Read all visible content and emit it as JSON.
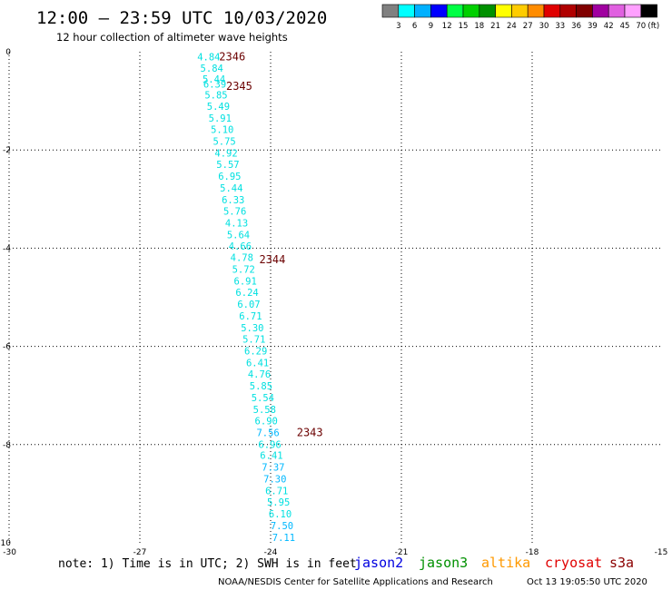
{
  "header": {
    "title": "12:00 – 23:59 UTC 10/03/2020",
    "subtitle": "12 hour collection of altimeter wave heights"
  },
  "colorbar": {
    "colors": [
      "#808080",
      "#00ffff",
      "#00b0ff",
      "#0000ff",
      "#00ff44",
      "#00d000",
      "#009000",
      "#ffff00",
      "#ffcc00",
      "#ff8c00",
      "#e00000",
      "#b00000",
      "#800000",
      "#a000a0",
      "#e060e0",
      "#ffa0ff",
      "#000000"
    ],
    "labels": [
      "3",
      "6",
      "9",
      "12",
      "15",
      "18",
      "21",
      "24",
      "27",
      "30",
      "33",
      "36",
      "39",
      "42",
      "45",
      "70"
    ],
    "unit": "(ft)"
  },
  "axes": {
    "x_ticks": [
      "-30",
      "-27",
      "-24",
      "-21",
      "-18",
      "-15"
    ],
    "y_ticks": [
      "0",
      "-2",
      "-4",
      "-6",
      "-8",
      "-10"
    ]
  },
  "chart_data": {
    "type": "scatter",
    "xlim": [
      -30,
      -15
    ],
    "ylim": [
      -10,
      0
    ],
    "grid": true,
    "points": [
      {
        "x": -25.42,
        "y": -0.1,
        "label": "4.84",
        "color": "#00e0e0"
      },
      {
        "x": -25.35,
        "y": -0.33,
        "label": "5.84",
        "color": "#00e0e0"
      },
      {
        "x": -25.3,
        "y": -0.55,
        "label": "5.44",
        "color": "#00e0e0"
      },
      {
        "x": -25.28,
        "y": -0.66,
        "label": "6.39",
        "color": "#00e0e0"
      },
      {
        "x": -25.25,
        "y": -0.88,
        "label": "5.85",
        "color": "#00e0e0"
      },
      {
        "x": -25.2,
        "y": -1.11,
        "label": "5.49",
        "color": "#00e0e0"
      },
      {
        "x": -25.16,
        "y": -1.35,
        "label": "5.91",
        "color": "#00e0e0"
      },
      {
        "x": -25.11,
        "y": -1.58,
        "label": "5.10",
        "color": "#00e0e0"
      },
      {
        "x": -25.06,
        "y": -1.82,
        "label": "5.75",
        "color": "#00e0e0"
      },
      {
        "x": -25.02,
        "y": -2.06,
        "label": "4.92",
        "color": "#00e0e0"
      },
      {
        "x": -24.98,
        "y": -2.29,
        "label": "5.57",
        "color": "#00e0e0"
      },
      {
        "x": -24.94,
        "y": -2.53,
        "label": "6.95",
        "color": "#00e0e0"
      },
      {
        "x": -24.9,
        "y": -2.77,
        "label": "5.44",
        "color": "#00e0e0"
      },
      {
        "x": -24.86,
        "y": -3.01,
        "label": "6.33",
        "color": "#00e0e0"
      },
      {
        "x": -24.82,
        "y": -3.24,
        "label": "5.76",
        "color": "#00e0e0"
      },
      {
        "x": -24.78,
        "y": -3.48,
        "label": "4.13",
        "color": "#00e0e0"
      },
      {
        "x": -24.74,
        "y": -3.72,
        "label": "5.64",
        "color": "#00e0e0"
      },
      {
        "x": -24.7,
        "y": -3.96,
        "label": "4.66",
        "color": "#00e0e0"
      },
      {
        "x": -24.66,
        "y": -4.19,
        "label": "4.78",
        "color": "#00e0e0"
      },
      {
        "x": -24.62,
        "y": -4.43,
        "label": "5.72",
        "color": "#00e0e0"
      },
      {
        "x": -24.58,
        "y": -4.67,
        "label": "6.91",
        "color": "#00e0e0"
      },
      {
        "x": -24.54,
        "y": -4.9,
        "label": "6.24",
        "color": "#00e0e0"
      },
      {
        "x": -24.5,
        "y": -5.14,
        "label": "6.07",
        "color": "#00e0e0"
      },
      {
        "x": -24.46,
        "y": -5.38,
        "label": "6.71",
        "color": "#00e0e0"
      },
      {
        "x": -24.42,
        "y": -5.62,
        "label": "5.30",
        "color": "#00e0e0"
      },
      {
        "x": -24.38,
        "y": -5.85,
        "label": "5.71",
        "color": "#00e0e0"
      },
      {
        "x": -24.34,
        "y": -6.09,
        "label": "6.29",
        "color": "#00e0e0"
      },
      {
        "x": -24.3,
        "y": -6.33,
        "label": "6.41",
        "color": "#00e0e0"
      },
      {
        "x": -24.26,
        "y": -6.56,
        "label": "4.76",
        "color": "#00e0e0"
      },
      {
        "x": -24.22,
        "y": -6.8,
        "label": "5.85",
        "color": "#00e0e0"
      },
      {
        "x": -24.18,
        "y": -7.04,
        "label": "5.54",
        "color": "#00e0e0"
      },
      {
        "x": -24.14,
        "y": -7.28,
        "label": "5.58",
        "color": "#00e0e0"
      },
      {
        "x": -24.1,
        "y": -7.51,
        "label": "6.90",
        "color": "#00e0e0"
      },
      {
        "x": -24.06,
        "y": -7.75,
        "label": "7.56",
        "color": "#00b8ff"
      },
      {
        "x": -24.02,
        "y": -7.99,
        "label": "6.96",
        "color": "#00e0e0"
      },
      {
        "x": -23.98,
        "y": -8.22,
        "label": "6.41",
        "color": "#00e0e0"
      },
      {
        "x": -23.94,
        "y": -8.46,
        "label": "7.37",
        "color": "#00b8ff"
      },
      {
        "x": -23.9,
        "y": -8.7,
        "label": "7.30",
        "color": "#00b8ff"
      },
      {
        "x": -23.86,
        "y": -8.94,
        "label": "6.71",
        "color": "#00e0e0"
      },
      {
        "x": -23.82,
        "y": -9.17,
        "label": "5.95",
        "color": "#00e0e0"
      },
      {
        "x": -23.78,
        "y": -9.41,
        "label": "6.10",
        "color": "#00e0e0"
      },
      {
        "x": -23.74,
        "y": -9.65,
        "label": "7.50",
        "color": "#00b8ff"
      },
      {
        "x": -23.7,
        "y": -9.89,
        "label": "7.11",
        "color": "#00b8ff"
      }
    ],
    "time_markers": [
      {
        "x": -24.88,
        "y": -0.1,
        "label": "2346"
      },
      {
        "x": -24.72,
        "y": -0.7,
        "label": "2345"
      },
      {
        "x": -23.96,
        "y": -4.23,
        "label": "2344"
      },
      {
        "x": -23.1,
        "y": -7.75,
        "label": "2343"
      }
    ]
  },
  "footer": {
    "note": "note: 1) Time is in UTC; 2) SWH is in feet",
    "satellites": [
      {
        "name": "jason2",
        "color": "#0000e0"
      },
      {
        "name": "jason3",
        "color": "#009000"
      },
      {
        "name": "altika",
        "color": "#ff9900"
      },
      {
        "name": "cryosat",
        "color": "#e00000"
      },
      {
        "name": "s3a",
        "color": "#8b0000"
      }
    ],
    "credit": "NOAA/NESDIS Center for Satellite Applications and Research",
    "timestamp": "Oct 13 19:05:50 UTC 2020"
  }
}
